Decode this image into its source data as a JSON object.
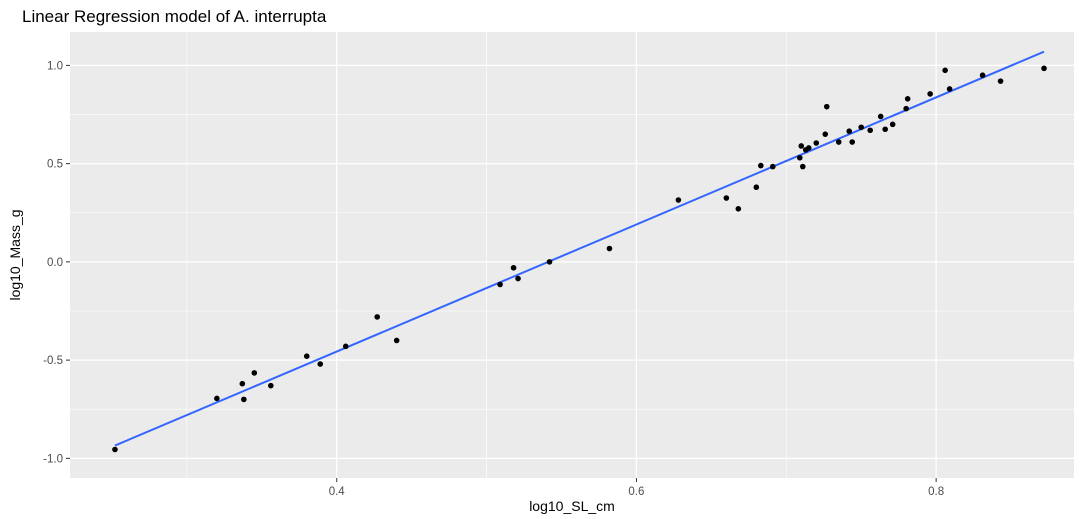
{
  "chart_data": {
    "type": "scatter",
    "title": "Linear Regression model of A. interrupta",
    "xlabel": "log10_SL_cm",
    "ylabel": "log10_Mass_g",
    "xlim": [
      0.222,
      0.892
    ],
    "ylim": [
      -1.1,
      1.17
    ],
    "x_ticks": [
      0.4,
      0.6,
      0.8
    ],
    "x_tick_labels": [
      "0.4",
      "0.6",
      "0.8"
    ],
    "y_ticks": [
      -1.0,
      -0.5,
      0.0,
      0.5,
      1.0
    ],
    "y_tick_labels": [
      "-1.0",
      "-0.5",
      "0.0",
      "0.5",
      "1.0"
    ],
    "grid": true,
    "background_color": "#ebebeb",
    "grid_color": "#ffffff",
    "point_color": "#000000",
    "line_color": "#3366ff",
    "series": [
      {
        "kind": "points",
        "points": [
          [
            0.252,
            -0.955
          ],
          [
            0.32,
            -0.695
          ],
          [
            0.337,
            -0.62
          ],
          [
            0.338,
            -0.7
          ],
          [
            0.345,
            -0.565
          ],
          [
            0.356,
            -0.63
          ],
          [
            0.38,
            -0.48
          ],
          [
            0.389,
            -0.52
          ],
          [
            0.406,
            -0.43
          ],
          [
            0.427,
            -0.28
          ],
          [
            0.44,
            -0.4
          ],
          [
            0.509,
            -0.115
          ],
          [
            0.518,
            -0.03
          ],
          [
            0.521,
            -0.085
          ],
          [
            0.542,
            0.0
          ],
          [
            0.582,
            0.068
          ],
          [
            0.628,
            0.315
          ],
          [
            0.66,
            0.325
          ],
          [
            0.668,
            0.27
          ],
          [
            0.68,
            0.38
          ],
          [
            0.683,
            0.49
          ],
          [
            0.691,
            0.485
          ],
          [
            0.709,
            0.53
          ],
          [
            0.71,
            0.59
          ],
          [
            0.711,
            0.485
          ],
          [
            0.713,
            0.57
          ],
          [
            0.715,
            0.58
          ],
          [
            0.72,
            0.605
          ],
          [
            0.726,
            0.65
          ],
          [
            0.727,
            0.79
          ],
          [
            0.735,
            0.61
          ],
          [
            0.742,
            0.665
          ],
          [
            0.744,
            0.61
          ],
          [
            0.75,
            0.685
          ],
          [
            0.756,
            0.67
          ],
          [
            0.763,
            0.74
          ],
          [
            0.766,
            0.675
          ],
          [
            0.771,
            0.7
          ],
          [
            0.78,
            0.78
          ],
          [
            0.781,
            0.83
          ],
          [
            0.796,
            0.855
          ],
          [
            0.806,
            0.975
          ],
          [
            0.809,
            0.88
          ],
          [
            0.831,
            0.95
          ],
          [
            0.843,
            0.92
          ],
          [
            0.872,
            0.985
          ]
        ]
      },
      {
        "kind": "line",
        "points": [
          [
            0.252,
            -0.935
          ],
          [
            0.872,
            1.07
          ]
        ]
      }
    ]
  }
}
